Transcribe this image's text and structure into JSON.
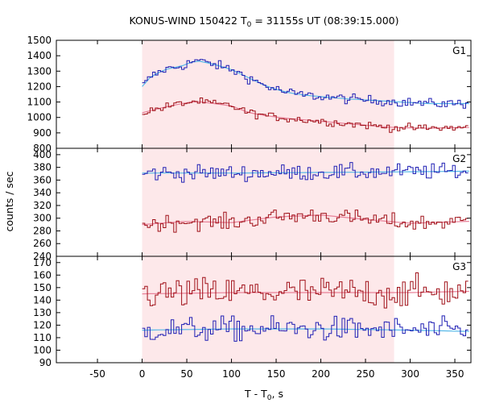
{
  "chart_data": {
    "type": "line",
    "title_prefix": "KONUS-WIND 150422 T",
    "title_sub": "0",
    "title_suffix": " = 31155s UT (08:39:15.000)",
    "xlabel_prefix": "T - T",
    "xlabel_sub": "0",
    "xlabel_suffix": ", s",
    "ylabel": "counts / sec",
    "xlim": [
      -96,
      368
    ],
    "x_ticks": [
      "-50",
      "0",
      "50",
      "100",
      "150",
      "200",
      "250",
      "300",
      "350"
    ],
    "x_tick_values": [
      -50,
      0,
      50,
      100,
      150,
      200,
      250,
      300,
      350
    ],
    "shaded_interval": [
      0,
      282
    ],
    "shade_color": "#fde8ea",
    "panels": [
      {
        "label": "G1",
        "ylim": [
          800,
          1500
        ],
        "y_ticks": [
          800,
          900,
          1000,
          1100,
          1200,
          1300,
          1400,
          1500
        ],
        "series": [
          {
            "color": "#1f1fb4",
            "fit_color": "#55b8e8",
            "start": 0,
            "step": 2.944,
            "anchors_x": [
              0,
              10,
              25,
              45,
              60,
              80,
              100,
              120,
              140,
              160,
              180,
              200,
              230,
              260,
              290,
              320,
              365
            ],
            "anchors_y": [
              1200,
              1265,
              1310,
              1335,
              1370,
              1345,
              1310,
              1255,
              1200,
              1165,
              1145,
              1135,
              1120,
              1110,
              1100,
              1090,
              1090
            ],
            "noise": 22
          },
          {
            "color": "#a01018",
            "fit_color": "#e88098",
            "start": 0,
            "step": 2.944,
            "anchors_x": [
              0,
              20,
              40,
              60,
              80,
              100,
              120,
              140,
              160,
              200,
              240,
              280,
              320,
              365
            ],
            "anchors_y": [
              1030,
              1060,
              1085,
              1105,
              1090,
              1075,
              1030,
              1010,
              995,
              975,
              955,
              935,
              930,
              935
            ],
            "noise": 18
          }
        ]
      },
      {
        "label": "G2",
        "ylim": [
          240,
          410
        ],
        "y_ticks": [
          240,
          260,
          280,
          300,
          320,
          340,
          360,
          380,
          400
        ],
        "series": [
          {
            "color": "#1f1fb4",
            "fit_color": "#55b8e8",
            "start": 0,
            "step": 2.944,
            "anchors_x": [
              0,
              100,
              200,
              300,
              365
            ],
            "anchors_y": [
              371,
              371,
              372,
              373,
              374
            ],
            "noise": 9
          },
          {
            "color": "#a01018",
            "fit_color": "#e88098",
            "start": 0,
            "step": 2.944,
            "anchors_x": [
              0,
              50,
              100,
              150,
              200,
              250,
              300,
              365
            ],
            "anchors_y": [
              290,
              295,
              293,
              302,
              305,
              298,
              292,
              295
            ],
            "noise": 9
          }
        ]
      },
      {
        "label": "G3",
        "ylim": [
          90,
          175
        ],
        "y_ticks": [
          90,
          100,
          110,
          120,
          130,
          140,
          150,
          160,
          170
        ],
        "series": [
          {
            "color": "#1f1fb4",
            "fit_color": "#55b8e8",
            "start": 0,
            "step": 2.944,
            "anchors_x": [
              0,
              100,
              200,
              300,
              365
            ],
            "anchors_y": [
              116,
              117,
              117,
              116,
              115
            ],
            "noise": 7
          },
          {
            "color": "#a01018",
            "fit_color": "#e88098",
            "start": 0,
            "step": 2.944,
            "anchors_x": [
              0,
              100,
              200,
              300,
              365
            ],
            "anchors_y": [
              145,
              146,
              146,
              146,
              147
            ],
            "noise": 9
          }
        ]
      }
    ]
  }
}
